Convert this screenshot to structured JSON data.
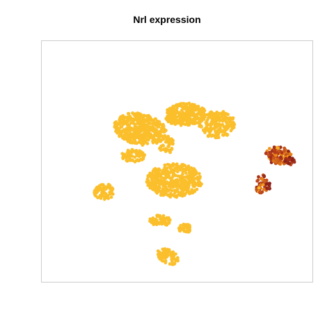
{
  "chart_data": {
    "type": "scatter",
    "title": "Nrl expression",
    "xlabel": "",
    "ylabel": "",
    "axes_shown": false,
    "grid": false,
    "legend": "none",
    "colors": {
      "low": "#FBBF2C",
      "mid": "#F18E18",
      "high": "#B0361A",
      "max": "#8B2319",
      "frame": "#CCCCCC"
    },
    "clusters": [
      {
        "cx": -0.28,
        "cy": 0.29,
        "rx": 0.2,
        "ry": 0.14,
        "n": 420,
        "rot": -15,
        "expr": 0.0
      },
      {
        "cx": 0.06,
        "cy": 0.42,
        "rx": 0.16,
        "ry": 0.1,
        "n": 280,
        "rot": 5,
        "expr": 0.0
      },
      {
        "cx": 0.3,
        "cy": 0.33,
        "rx": 0.14,
        "ry": 0.12,
        "n": 200,
        "rot": 10,
        "expr": 0.0
      },
      {
        "cx": -0.33,
        "cy": 0.05,
        "rx": 0.09,
        "ry": 0.06,
        "n": 60,
        "rot": 0,
        "expr": 0.0
      },
      {
        "cx": -0.08,
        "cy": 0.15,
        "rx": 0.06,
        "ry": 0.08,
        "n": 50,
        "rot": 0,
        "expr": 0.0
      },
      {
        "cx": -0.02,
        "cy": -0.17,
        "rx": 0.21,
        "ry": 0.15,
        "n": 420,
        "rot": 0,
        "expr": 0.0
      },
      {
        "cx": -0.55,
        "cy": -0.27,
        "rx": 0.08,
        "ry": 0.07,
        "n": 70,
        "rot": 0,
        "expr": 0.0
      },
      {
        "cx": -0.13,
        "cy": -0.53,
        "rx": 0.08,
        "ry": 0.05,
        "n": 50,
        "rot": 0,
        "expr": 0.0
      },
      {
        "cx": 0.06,
        "cy": -0.6,
        "rx": 0.05,
        "ry": 0.04,
        "n": 40,
        "rot": 0,
        "expr": 0.0
      },
      {
        "cx": -0.07,
        "cy": -0.85,
        "rx": 0.09,
        "ry": 0.06,
        "n": 60,
        "rot": -40,
        "expr": 0.0
      },
      {
        "cx": 0.77,
        "cy": 0.05,
        "rx": 0.1,
        "ry": 0.08,
        "n": 110,
        "rot": -20,
        "expr": 0.55
      },
      {
        "cx": 0.85,
        "cy": 0.0,
        "rx": 0.04,
        "ry": 0.04,
        "n": 25,
        "rot": 0,
        "expr": 0.95
      },
      {
        "cx": 0.64,
        "cy": -0.2,
        "rx": 0.05,
        "ry": 0.09,
        "n": 50,
        "rot": 0,
        "expr": 0.6
      },
      {
        "cx": 0.69,
        "cy": -0.22,
        "rx": 0.02,
        "ry": 0.03,
        "n": 10,
        "rot": 0,
        "expr": 1.0
      }
    ]
  }
}
